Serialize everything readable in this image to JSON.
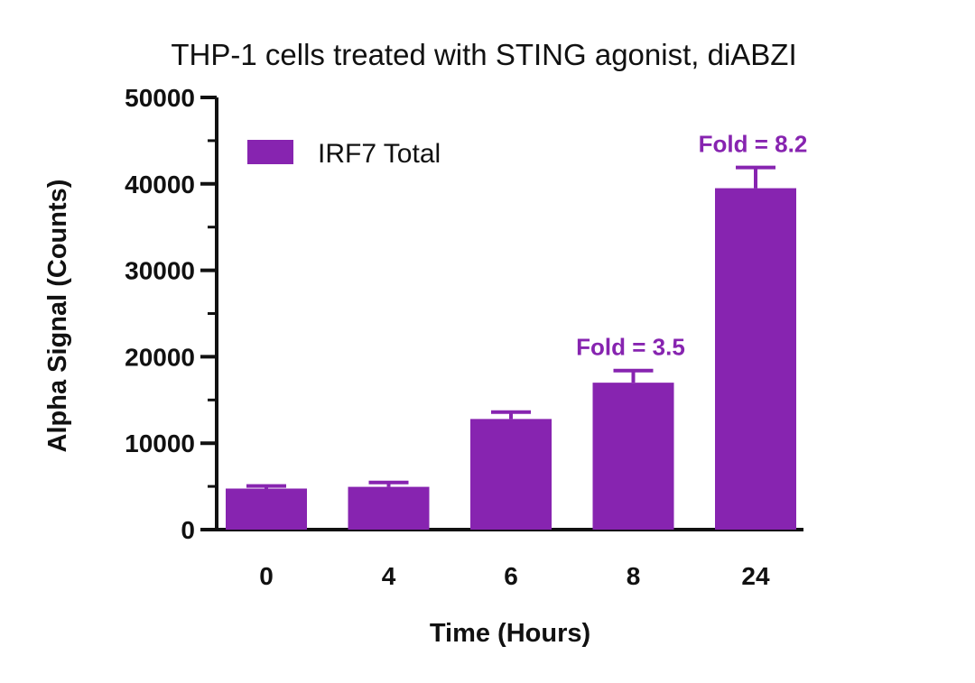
{
  "chart_data": {
    "type": "bar",
    "title": "THP-1 cells treated with STING agonist, diABZI",
    "xlabel": "Time (Hours)",
    "ylabel": "Alpha Signal (Counts)",
    "categories": [
      "0",
      "4",
      "6",
      "8",
      "24"
    ],
    "series": [
      {
        "name": "IRF7 Total",
        "values": [
          4750,
          4950,
          12800,
          17000,
          39500
        ],
        "error": [
          300,
          500,
          800,
          1400,
          2400
        ]
      }
    ],
    "ylim": [
      0,
      50000
    ],
    "yticks": [
      0,
      10000,
      20000,
      30000,
      40000,
      50000
    ],
    "ytick_labels": [
      "0",
      "10000",
      "20000",
      "30000",
      "40000",
      "50000"
    ],
    "annotations": [
      {
        "category": "8",
        "text": "Fold = 3.5"
      },
      {
        "category": "24",
        "text": "Fold = 8.2"
      }
    ],
    "grid": false,
    "legend_position": "top-left",
    "colors": {
      "bar": "#8724b0",
      "axis": "#111111"
    }
  }
}
